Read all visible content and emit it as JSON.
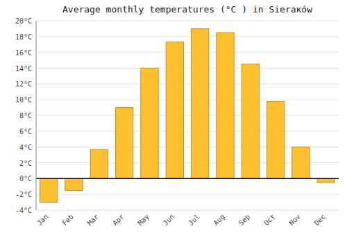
{
  "chart_data": {
    "type": "bar",
    "title": "Average monthly temperatures (°C ) in Sierакów",
    "categories": [
      "Jan",
      "Feb",
      "Mar",
      "Apr",
      "May",
      "Jun",
      "Jul",
      "Aug",
      "Sep",
      "Oct",
      "Nov",
      "Dec"
    ],
    "values": [
      -3.0,
      -1.5,
      3.7,
      9.0,
      14.0,
      17.3,
      19.0,
      18.5,
      14.5,
      9.8,
      4.0,
      -0.5
    ],
    "color": "#FFC030",
    "ylim": [
      -4,
      20
    ],
    "yticks": [
      {
        "value": -4,
        "label": "-4°C"
      },
      {
        "value": -2,
        "label": "-2°C"
      },
      {
        "value": 0,
        "label": "0°C"
      },
      {
        "value": 2,
        "label": "2°C"
      },
      {
        "value": 4,
        "label": "4°C"
      },
      {
        "value": 6,
        "label": "6°C"
      },
      {
        "value": 8,
        "label": "8°C"
      },
      {
        "value": 10,
        "label": "10°C"
      },
      {
        "value": 12,
        "label": "12°C"
      },
      {
        "value": 14,
        "label": "14°C"
      },
      {
        "value": 16,
        "label": "16°C"
      },
      {
        "value": 18,
        "label": "18°C"
      },
      {
        "value": 20,
        "label": "20°C"
      }
    ],
    "grid": true
  }
}
